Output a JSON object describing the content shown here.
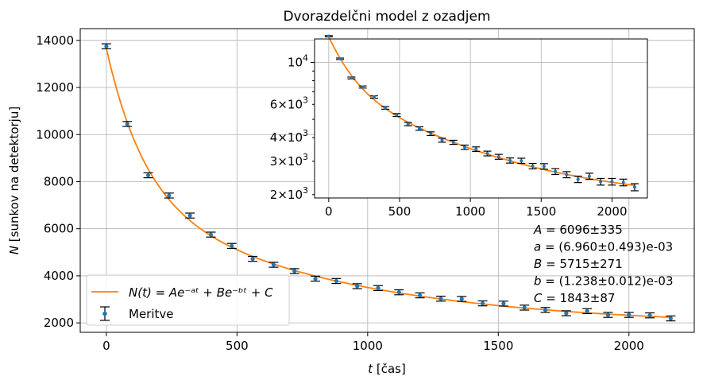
{
  "chart_data": [
    {
      "type": "scatter",
      "title": "Dvorazdelčni model z ozadjem",
      "xlabel": "t [čas]",
      "ylabel": "N [sunkov na detektorju]",
      "xlim": [
        -100,
        2250
      ],
      "ylim": [
        1600,
        14500
      ],
      "xticks": [
        0,
        500,
        1000,
        1500,
        2000
      ],
      "yticks": [
        2000,
        4000,
        6000,
        8000,
        10000,
        12000,
        14000
      ],
      "grid": true,
      "legend": "lower-left",
      "legend_entries": [
        "N(t) = Ae^{-at} + Be^{-bt} + C",
        "Meritve"
      ],
      "series": [
        {
          "name": "Meritve",
          "x": [
            0,
            80,
            160,
            240,
            320,
            400,
            480,
            560,
            640,
            720,
            800,
            880,
            960,
            1040,
            1120,
            1200,
            1280,
            1360,
            1440,
            1520,
            1600,
            1680,
            1760,
            1840,
            1920,
            2000,
            2080,
            2160
          ],
          "y": [
            13750,
            10450,
            8270,
            7410,
            6560,
            5750,
            5270,
            4720,
            4470,
            4200,
            3880,
            3780,
            3560,
            3480,
            3300,
            3170,
            3030,
            3020,
            2830,
            2820,
            2650,
            2550,
            2410,
            2500,
            2340,
            2340,
            2320,
            2190
          ],
          "yerr": 105
        },
        {
          "name": "N(t) = Ae^{-at} + Be^{-bt} + C",
          "model": {
            "A": 6096,
            "a": 0.00696,
            "B": 5715,
            "b": 0.001238,
            "C": 1843
          }
        }
      ],
      "annotations": [
        "A = 6096±335",
        "a = (6.960±0.493)e-03",
        "B = 5715±271",
        "b = (1.238±0.012)e-03",
        "C = 1843±87"
      ]
    },
    {
      "type": "scatter",
      "yscale": "log",
      "xlim": [
        -100,
        2250
      ],
      "ylim": [
        1920,
        13300
      ],
      "xticks": [
        0,
        500,
        1000,
        1500,
        2000
      ],
      "yticks_major": [
        10000
      ],
      "yticks_minor_labeled": [
        2000,
        3000,
        4000,
        6000
      ],
      "ytick_labels": {
        "10000": "10^4",
        "6000": "6×10^3",
        "4000": "4×10^3",
        "3000": "3×10^3",
        "2000": "2×10^3"
      },
      "grid": true
    }
  ]
}
